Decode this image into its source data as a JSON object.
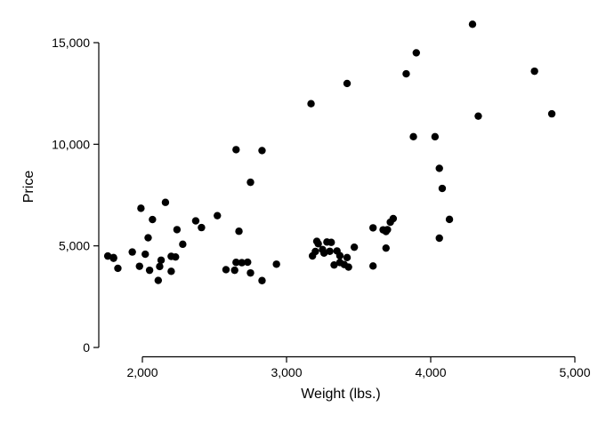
{
  "chart_data": {
    "type": "scatter",
    "xlabel": "Weight (lbs.)",
    "ylabel": "Price",
    "xlim": [
      2000,
      5000
    ],
    "ylim": [
      0,
      15000
    ],
    "xticks": [
      2000,
      3000,
      4000,
      5000
    ],
    "xtick_labels": [
      "2,000",
      "3,000",
      "4,000",
      "5,000"
    ],
    "yticks": [
      0,
      5000,
      10000,
      15000
    ],
    "ytick_labels": [
      "0",
      "5,000",
      "10,000",
      "15,000"
    ],
    "grid": false,
    "marker_color": "#000000",
    "points": [
      [
        2930,
        4099
      ],
      [
        3350,
        4749
      ],
      [
        2640,
        3799
      ],
      [
        3250,
        4816
      ],
      [
        4080,
        7827
      ],
      [
        3670,
        5788
      ],
      [
        2230,
        4453
      ],
      [
        3280,
        5189
      ],
      [
        3880,
        10372
      ],
      [
        3400,
        4082
      ],
      [
        4330,
        11385
      ],
      [
        3900,
        14500
      ],
      [
        4290,
        15906
      ],
      [
        2110,
        3299
      ],
      [
        3690,
        5705
      ],
      [
        3180,
        4504
      ],
      [
        3220,
        5104
      ],
      [
        2750,
        3667
      ],
      [
        3430,
        3955
      ],
      [
        2120,
        3984
      ],
      [
        3600,
        4010
      ],
      [
        3600,
        5886
      ],
      [
        3740,
        6342
      ],
      [
        1800,
        4389
      ],
      [
        2650,
        4187
      ],
      [
        4840,
        11497
      ],
      [
        4720,
        13594
      ],
      [
        3830,
        13466
      ],
      [
        2580,
        3829
      ],
      [
        4060,
        5379
      ],
      [
        3720,
        6165
      ],
      [
        3370,
        4516
      ],
      [
        4130,
        6303
      ],
      [
        2830,
        3291
      ],
      [
        4060,
        8814
      ],
      [
        3310,
        5172
      ],
      [
        3300,
        4733
      ],
      [
        3690,
        4890
      ],
      [
        3370,
        4181
      ],
      [
        2730,
        4195
      ],
      [
        4030,
        10371
      ],
      [
        3260,
        4647
      ],
      [
        1800,
        4425
      ],
      [
        2200,
        4482
      ],
      [
        2520,
        6486
      ],
      [
        3330,
        4060
      ],
      [
        3700,
        5798
      ],
      [
        3470,
        4934
      ],
      [
        3210,
        5222
      ],
      [
        3200,
        4723
      ],
      [
        3420,
        4424
      ],
      [
        2690,
        4172
      ],
      [
        2830,
        9690
      ],
      [
        2070,
        6295
      ],
      [
        2650,
        9735
      ],
      [
        2370,
        6229
      ],
      [
        2020,
        4589
      ],
      [
        2280,
        5079
      ],
      [
        2750,
        8129
      ],
      [
        2130,
        4296
      ],
      [
        2240,
        5799
      ],
      [
        1760,
        4499
      ],
      [
        1980,
        3995
      ],
      [
        3420,
        12990
      ],
      [
        1830,
        3895
      ],
      [
        2050,
        3798
      ],
      [
        2410,
        5899
      ],
      [
        2200,
        3748
      ],
      [
        2670,
        5719
      ],
      [
        2160,
        7140
      ],
      [
        2040,
        5397
      ],
      [
        1930,
        4697
      ],
      [
        1990,
        6850
      ],
      [
        3170,
        11995
      ]
    ]
  }
}
